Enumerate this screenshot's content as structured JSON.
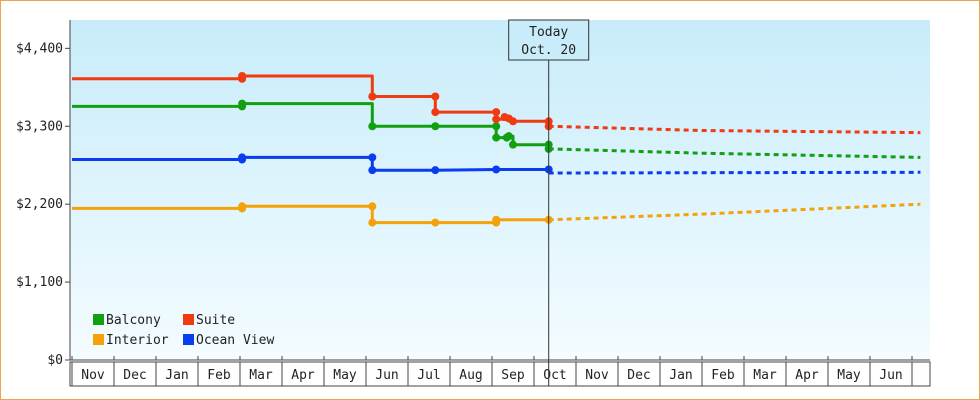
{
  "chart_data": {
    "type": "line",
    "title": "",
    "xlabel": "",
    "ylabel": "",
    "ylim": [
      0,
      4800
    ],
    "yticks": [
      0,
      1100,
      2200,
      3300,
      4400
    ],
    "ytick_labels": [
      "$0",
      "$1,100",
      "$2,200",
      "$3,300",
      "$4,400"
    ],
    "month_labels": [
      "Nov",
      "Dec",
      "Jan",
      "Feb",
      "Mar",
      "Apr",
      "May",
      "Jun",
      "Jul",
      "Aug",
      "Sep",
      "Oct",
      "Nov",
      "Dec",
      "Jan",
      "Feb",
      "Mar",
      "Apr",
      "May",
      "Jun"
    ],
    "today_marker": {
      "line1": "Today",
      "line2": "Oct. 20",
      "x": 11.35
    },
    "plot_background": {
      "top": "#c8ecfa",
      "bottom": "#f4fcff"
    },
    "legend_position": "bottom-left",
    "series": [
      {
        "name": "Balcony",
        "color": "#10a010",
        "history": [
          [
            0,
            3580
          ],
          [
            4.05,
            3580
          ],
          [
            4.05,
            3620
          ],
          [
            7.15,
            3620
          ],
          [
            7.15,
            3300
          ],
          [
            8.65,
            3300
          ],
          [
            10.1,
            3300
          ],
          [
            10.1,
            3140
          ],
          [
            10.35,
            3140
          ],
          [
            10.35,
            3160
          ],
          [
            10.5,
            3160
          ],
          [
            10.5,
            3040
          ],
          [
            11.35,
            3040
          ]
        ],
        "markers": [
          [
            4.05,
            3580
          ],
          [
            4.05,
            3620
          ],
          [
            7.15,
            3300
          ],
          [
            8.65,
            3300
          ],
          [
            10.1,
            3300
          ],
          [
            10.1,
            3140
          ],
          [
            10.35,
            3140
          ],
          [
            10.4,
            3160
          ],
          [
            10.5,
            3040
          ],
          [
            11.35,
            3040
          ],
          [
            11.35,
            2980
          ]
        ],
        "forecast": [
          [
            11.35,
            2980
          ],
          [
            15,
            2920
          ],
          [
            20.2,
            2860
          ]
        ]
      },
      {
        "name": "Suite",
        "color": "#f03a10",
        "history": [
          [
            0,
            3970
          ],
          [
            4.05,
            3970
          ],
          [
            4.05,
            4010
          ],
          [
            7.15,
            4010
          ],
          [
            7.15,
            3720
          ],
          [
            8.65,
            3720
          ],
          [
            8.65,
            3500
          ],
          [
            10.1,
            3500
          ],
          [
            10.1,
            3400
          ],
          [
            10.5,
            3400
          ],
          [
            10.5,
            3370
          ],
          [
            11.35,
            3370
          ]
        ],
        "markers": [
          [
            4.05,
            3970
          ],
          [
            4.05,
            4010
          ],
          [
            7.15,
            3720
          ],
          [
            8.65,
            3720
          ],
          [
            8.65,
            3500
          ],
          [
            10.1,
            3500
          ],
          [
            10.1,
            3400
          ],
          [
            10.3,
            3430
          ],
          [
            10.4,
            3410
          ],
          [
            10.5,
            3370
          ],
          [
            11.35,
            3370
          ],
          [
            11.35,
            3300
          ]
        ],
        "forecast": [
          [
            11.35,
            3300
          ],
          [
            15,
            3240
          ],
          [
            20.2,
            3210
          ]
        ]
      },
      {
        "name": "Interior",
        "color": "#f5a20a",
        "history": [
          [
            0,
            2140
          ],
          [
            4.05,
            2140
          ],
          [
            4.05,
            2170
          ],
          [
            7.15,
            2170
          ],
          [
            7.15,
            1940
          ],
          [
            8.65,
            1940
          ],
          [
            10.1,
            1940
          ],
          [
            10.1,
            1980
          ],
          [
            11.35,
            1980
          ]
        ],
        "markers": [
          [
            4.05,
            2140
          ],
          [
            4.05,
            2170
          ],
          [
            7.15,
            2170
          ],
          [
            7.15,
            1940
          ],
          [
            8.65,
            1940
          ],
          [
            10.1,
            1940
          ],
          [
            10.1,
            1980
          ],
          [
            11.35,
            1980
          ]
        ],
        "forecast": [
          [
            11.35,
            1980
          ],
          [
            15,
            2060
          ],
          [
            20.2,
            2200
          ]
        ]
      },
      {
        "name": "Ocean View",
        "color": "#0a3cf0",
        "history": [
          [
            0,
            2830
          ],
          [
            4.05,
            2830
          ],
          [
            4.05,
            2860
          ],
          [
            7.15,
            2860
          ],
          [
            7.15,
            2680
          ],
          [
            8.65,
            2680
          ],
          [
            10.1,
            2690
          ],
          [
            11.35,
            2690
          ]
        ],
        "markers": [
          [
            4.05,
            2830
          ],
          [
            4.05,
            2860
          ],
          [
            7.15,
            2860
          ],
          [
            7.15,
            2680
          ],
          [
            8.65,
            2680
          ],
          [
            10.1,
            2690
          ],
          [
            11.35,
            2690
          ]
        ],
        "forecast": [
          [
            11.35,
            2640
          ],
          [
            20.2,
            2650
          ]
        ]
      }
    ]
  }
}
